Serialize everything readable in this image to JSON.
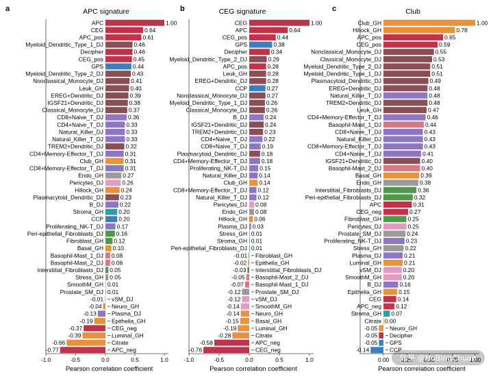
{
  "chart_data": [
    {
      "type": "bar",
      "orientation": "horizontal",
      "panel_label": "a",
      "title": "APC signature",
      "xlabel": "Pearson correlation coefficient",
      "xlim": [
        -1.0,
        1.0
      ],
      "xticks": [
        "-1.0",
        "-0.5",
        "0.0",
        "0.5",
        "1.0"
      ],
      "categories": [
        "APC",
        "CEG",
        "APC_pos",
        "Myeloid_Dendritic_Type_1_DJ",
        "Decipher",
        "CEG_pos",
        "GPS",
        "Myeloid_Dendritic_Type_2_DJ",
        "Nonclassical_Monocyte_DJ",
        "Leuk_GH",
        "EREG+Dendritic_DJ",
        "IGSF21+Dendritic_DJ",
        "Classical_Monocyte_DJ",
        "CD8+Naive_T_DJ",
        "CD4+Naive_T_DJ",
        "Natural_Killer_DJ",
        "Natural_Killer_T_DJ",
        "TREM2+Dendritic_DJ",
        "CD4+Memory-Effector_T_DJ",
        "Club_GH",
        "CD8+Memory-Effector_T_DJ",
        "Endo_GH",
        "Pericytes_DJ",
        "Hillock_GH",
        "Plasmacytoid_Dendritic_DJ",
        "B_DJ",
        "Stroma_GH",
        "CCP",
        "Proliferating_NK-T_DJ",
        "Peri-epithelial_Fibroblasts_DJ",
        "Fibroblast_GH",
        "Basal_GH",
        "Basophil-Mast_1_DJ",
        "Basophil-Mast_2_DJ",
        "Interstitial_Fibroblasts_DJ",
        "Stress_GH",
        "SmoothM_GH",
        "Prostate_SM_DJ",
        "vSM_DJ",
        "Neuro_GH",
        "Plasma_DJ",
        "Epithelia_GH",
        "CEG_neg",
        "Luminal_GH",
        "Citrate",
        "APC_neg"
      ],
      "values": [
        1.0,
        0.64,
        0.61,
        0.46,
        0.46,
        0.45,
        0.44,
        0.43,
        0.41,
        0.4,
        0.39,
        0.38,
        0.37,
        0.36,
        0.33,
        0.33,
        0.33,
        0.32,
        0.31,
        0.31,
        0.31,
        0.27,
        0.26,
        0.24,
        0.23,
        0.22,
        0.2,
        0.2,
        0.17,
        0.16,
        0.12,
        0.1,
        0.08,
        0.08,
        0.05,
        0.05,
        0.01,
        0.01,
        -0.01,
        -0.04,
        -0.13,
        -0.19,
        -0.37,
        -0.39,
        -0.66,
        -0.77
      ],
      "labels": [
        "1.00",
        "0.64",
        "0.61",
        "0.46",
        "0.46",
        "0.45",
        "0.44",
        "0.43",
        "0.41",
        "0.40",
        "0.39",
        "0.38",
        "0.37",
        "0.36",
        "0.33",
        "0.33",
        "0.33",
        "0.32",
        "0.31",
        "0.31",
        "0.31",
        "0.27",
        "0.26",
        "0.24",
        "0.23",
        "0.22",
        "0.20",
        "0.20",
        "0.17",
        "0.16",
        "0.12",
        "0.10",
        "0.08",
        "0.08",
        "0.05",
        "0.05",
        "0.01",
        "0.01",
        "-0.01",
        "-0.04",
        "-0.13",
        "-0.19",
        "-0.37",
        "-0.39",
        "-0.66",
        "-0.77"
      ]
    },
    {
      "type": "bar",
      "orientation": "horizontal",
      "panel_label": "b",
      "title": "CEG signature",
      "xlabel": "Pearson correlation coefficient",
      "xlim": [
        -1.0,
        1.0
      ],
      "xticks": [
        "-1.0",
        "-0.5",
        "0.0",
        "0.5",
        "1.0"
      ],
      "categories": [
        "CEG",
        "APC",
        "CEG_pos",
        "GPS",
        "Decipher",
        "Myeloid_Dendritic_Type_2_DJ",
        "APC_pos",
        "Leuk_GH",
        "EREG+Dendritic_DJ",
        "CCP",
        "Nonclassical_Monocyte_DJ",
        "Myeloid_Dendritic_Type_1_DJ",
        "Classical_Monocyte_DJ",
        "B_DJ",
        "IGSF21+Dendritic_DJ",
        "TREM2+Dendritic_DJ",
        "CD4+Naive_T_DJ",
        "CD8+Naive_T_DJ",
        "Plasmacytoid_Dendritic_DJ",
        "CD4+Memory-Effector_T_DJ",
        "Proliferating_NK-T_DJ",
        "Natural_Killer_DJ",
        "Club_GH",
        "CD8+Memory-Effector_T_DJ",
        "Natural_Killer_T_DJ",
        "Pericytes_DJ",
        "Endo_GH",
        "Hillock_GH",
        "Plasma_DJ",
        "Stress_GH",
        "Stroma_GH",
        "Peri-epithelial_Fibroblasts_DJ",
        "Fibroblast_GH",
        "Epithelia_GH",
        "Interstitial_Fibroblasts_DJ",
        "Basophil-Mast_2_DJ",
        "Basophil-Mast_1_DJ",
        "Prostate_SM_DJ",
        "vSM_DJ",
        "SmoothM_GH",
        "Neuro_GH",
        "Basal_GH",
        "Luminal_GH",
        "Citrate",
        "APC_neg",
        "CEG_neg"
      ],
      "values": [
        1.0,
        0.64,
        0.44,
        0.38,
        0.34,
        0.29,
        0.28,
        0.28,
        0.28,
        0.27,
        0.27,
        0.26,
        0.26,
        0.24,
        0.24,
        0.23,
        0.22,
        0.19,
        0.18,
        0.18,
        0.15,
        0.14,
        0.14,
        0.12,
        0.12,
        0.08,
        0.08,
        0.06,
        0.03,
        0.01,
        0.01,
        0.01,
        -0.01,
        -0.02,
        -0.03,
        -0.05,
        -0.07,
        -0.12,
        -0.12,
        -0.14,
        -0.14,
        -0.15,
        -0.19,
        -0.28,
        -0.58,
        -0.76
      ],
      "labels": [
        "1.00",
        "0.64",
        "0.44",
        "0.38",
        "0.34",
        "0.29",
        "0.28",
        "0.28",
        "0.28",
        "0.27",
        "0.27",
        "0.26",
        "0.26",
        "0.24",
        "0.24",
        "0.23",
        "0.22",
        "0.19",
        "0.18",
        "0.18",
        "0.15",
        "0.14",
        "0.14",
        "0.12",
        "0.12",
        "0.08",
        "0.08",
        "0.06",
        "0.03",
        "0.01",
        "0.01",
        "0.01",
        "-0.01",
        "-0.02",
        "-0.03",
        "-0.05",
        "-0.07",
        "-0.12",
        "-0.12",
        "-0.14",
        "-0.14",
        "-0.15",
        "-0.19",
        "-0.28",
        "-0.58",
        "-0.76"
      ]
    },
    {
      "type": "bar",
      "orientation": "horizontal",
      "panel_label": "c",
      "title": "Club",
      "xlabel": "Pearson correlation coefficient",
      "xlim": [
        -0.25,
        1.0
      ],
      "xticks": [
        "0.00",
        "0.25",
        "0.50",
        "0.75",
        "1.00"
      ],
      "categories": [
        "Club_GH",
        "Hillock_GH",
        "APC_pos",
        "CEG_pos",
        "Nonclassical_Monocyte_DJ",
        "Classical_Monocyte_DJ",
        "Myeloid_Dendritic_Type_2_DJ",
        "Myeloid_Dendritic_Type_1_DJ",
        "Plasmacytoid_Dendritic_DJ",
        "EREG+Dendritic_DJ",
        "Natural_Killer_T_DJ",
        "TREM2+Dendritic_DJ",
        "Leuk_GH",
        "CD4+Memory-Effector_T_DJ",
        "Basophil-Mast_1_DJ",
        "CD8+Naive_T_DJ",
        "Natural_Killer_DJ",
        "CD8+Memory-Effector_T_DJ",
        "CD4+Naive_T_DJ",
        "IGSF21+Dendritic_DJ",
        "Basophil-Mast_2_DJ",
        "Basal_GH",
        "Endo_GH",
        "Interstitial_Fibroblasts_DJ",
        "Peri-epithelial_Fibroblasts_DJ",
        "APC",
        "CEG_neg",
        "Fibroblast_GH",
        "Pericytes_DJ",
        "Prostate_SM_DJ",
        "Proliferating_NK-T_DJ",
        "Stress_GH",
        "Plasma_DJ",
        "Luminal_GH",
        "vSM_DJ",
        "SmoothM_GH",
        "B_DJ",
        "Epithelia_GH",
        "CEG",
        "APC_neg",
        "Stroma_GH",
        "Citrate",
        "Neuro_GH",
        "Decipher",
        "GPS",
        "CCP"
      ],
      "values": [
        1.0,
        0.78,
        0.65,
        0.59,
        0.55,
        0.53,
        0.51,
        0.51,
        0.49,
        0.48,
        0.48,
        0.48,
        0.47,
        0.46,
        0.44,
        0.43,
        0.43,
        0.43,
        0.41,
        0.4,
        0.4,
        0.39,
        0.38,
        0.36,
        0.32,
        0.31,
        0.27,
        0.25,
        0.25,
        0.24,
        0.23,
        0.22,
        0.21,
        0.21,
        0.2,
        0.2,
        0.16,
        0.15,
        0.14,
        0.12,
        0.07,
        0.0,
        -0.05,
        -0.05,
        -0.05,
        -0.14
      ],
      "labels": [
        "1.00",
        "0.78",
        "0.65",
        "0.59",
        "0.55",
        "0.53",
        "0.51",
        "0.51",
        "0.49",
        "0.48",
        "0.48",
        "0.48",
        "0.47",
        "0.46",
        "0.44",
        "0.43",
        "0.43",
        "0.43",
        "0.41",
        "0.40",
        "0.40",
        "0.39",
        "0.38",
        "0.36",
        "0.32",
        "0.31",
        "0.27",
        "0.25",
        "0.25",
        "0.24",
        "0.23",
        "0.22",
        "0.21",
        "0.21",
        "0.20",
        "0.20",
        "0.16",
        "0.15",
        "0.14",
        "0.12",
        "0.07",
        "0.00",
        "-0.05",
        "-0.05",
        "-0.05",
        "-0.14"
      ]
    }
  ],
  "category_colors": {
    "APC": "#c0334a",
    "APC_pos": "#c0334a",
    "APC_neg": "#c0334a",
    "CEG": "#c0334a",
    "CEG_pos": "#c0334a",
    "CEG_neg": "#c0334a",
    "Decipher": "#c0334a",
    "GPS": "#3b7fc0",
    "CCP": "#3b7fc0",
    "Myeloid_Dendritic_Type_1_DJ": "#8b4e56",
    "Myeloid_Dendritic_Type_2_DJ": "#8b4e56",
    "Nonclassical_Monocyte_DJ": "#8b4e56",
    "Classical_Monocyte_DJ": "#8b4e56",
    "EREG+Dendritic_DJ": "#8b4e56",
    "IGSF21+Dendritic_DJ": "#8b4e56",
    "TREM2+Dendritic_DJ": "#8b4e56",
    "Plasmacytoid_Dendritic_DJ": "#8b4e56",
    "Leuk_GH": "#8b4e56",
    "CD8+Naive_T_DJ": "#8e77c2",
    "CD4+Naive_T_DJ": "#8e77c2",
    "Natural_Killer_DJ": "#8e77c2",
    "Natural_Killer_T_DJ": "#8e77c2",
    "CD4+Memory-Effector_T_DJ": "#8e77c2",
    "CD8+Memory-Effector_T_DJ": "#8e77c2",
    "Proliferating_NK-T_DJ": "#8e77c2",
    "B_DJ": "#8e77c2",
    "Plasma_DJ": "#8e77c2",
    "Club_GH": "#e8923a",
    "Hillock_GH": "#e8923a",
    "Basal_GH": "#e8923a",
    "Luminal_GH": "#e8923a",
    "Citrate": "#e8923a",
    "Epithelia_GH": "#e8923a",
    "Neuro_GH": "#e8923a",
    "Endo_GH": "#9a9a9a",
    "Stress_GH": "#9a9a9a",
    "Prostate_SM_DJ": "#9a9a9a",
    "Pericytes_DJ": "#e39ac6",
    "SmoothM_GH": "#e39ac6",
    "vSM_DJ": "#e39ac6",
    "Stroma_GH": "#2f9ea0",
    "Peri-epithelial_Fibroblasts_DJ": "#4c9a45",
    "Fibroblast_GH": "#4c9a45",
    "Interstitial_Fibroblasts_DJ": "#4c9a45",
    "Basophil-Mast_1_DJ": "#d77a88",
    "Basophil-Mast_2_DJ": "#d77a88"
  },
  "watermark": "知乎 @HuBingChuan"
}
